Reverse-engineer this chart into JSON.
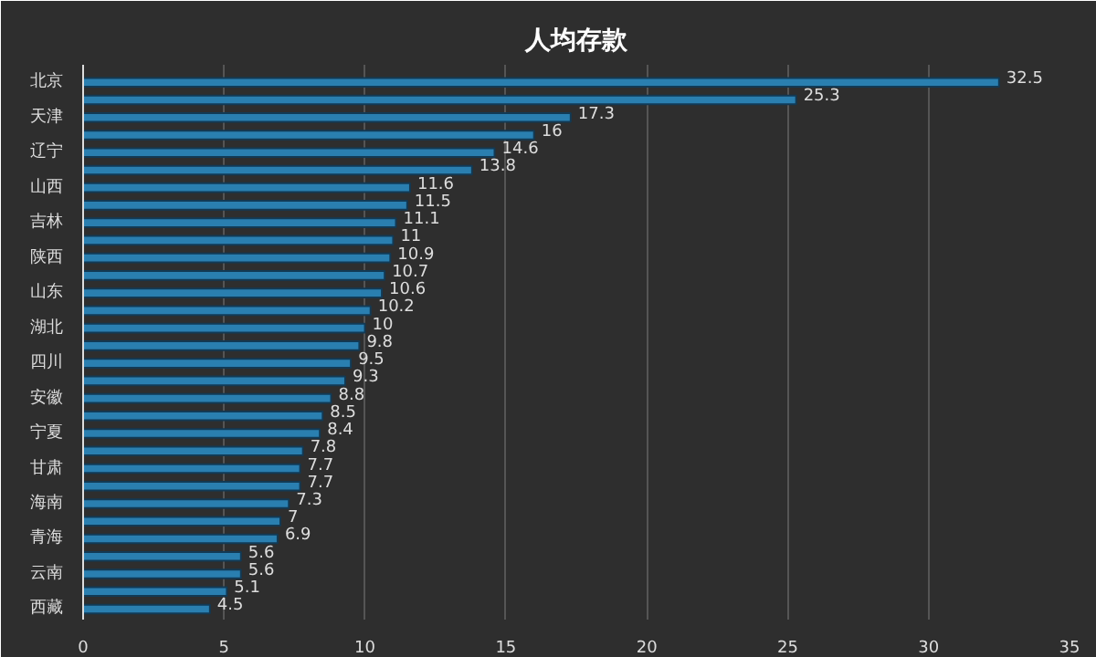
{
  "chart_data": {
    "type": "bar",
    "orientation": "horizontal",
    "title": "人均存款",
    "categories": [
      "北京",
      null,
      "天津",
      null,
      "辽宁",
      null,
      "山西",
      null,
      "吉林",
      null,
      "陕西",
      null,
      "山东",
      null,
      "湖北",
      null,
      "四川",
      null,
      "安徽",
      null,
      "宁夏",
      null,
      "甘肃",
      null,
      "海南",
      null,
      "青海",
      null,
      "云南",
      null,
      "西藏"
    ],
    "values": [
      32.5,
      25.3,
      17.3,
      16,
      14.6,
      13.8,
      11.6,
      11.5,
      11.1,
      11,
      10.9,
      10.7,
      10.6,
      10.2,
      10,
      9.8,
      9.5,
      9.3,
      8.8,
      8.5,
      8.4,
      7.8,
      7.7,
      7.7,
      7.3,
      7,
      6.9,
      5.6,
      5.6,
      5.1,
      4.5
    ],
    "color": "#2a7fb0",
    "xlim": [
      0,
      35
    ],
    "xticks": [
      0,
      5,
      10,
      15,
      20,
      25,
      30,
      35
    ],
    "grid": "x",
    "data_labels": true
  }
}
